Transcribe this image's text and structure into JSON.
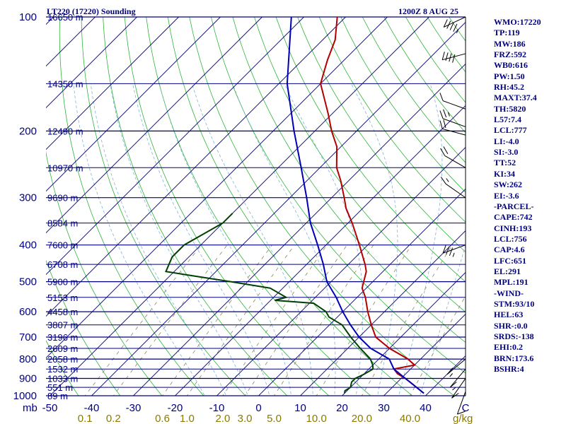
{
  "header": {
    "title": "LT220 (17220) Sounding",
    "valid": "1200Z  8 AUG 25"
  },
  "indices": [
    "WMO:17220",
    "TP:119",
    "MW:186",
    "FRZ:592",
    "WB0:616",
    "PW:1.50",
    "RH:45.2",
    "MAXT:37.4",
    "TH:5820",
    "L57:7.4",
    "LCL:777",
    "LI:-4.0",
    "SI:-3.0",
    "TT:52",
    "KI:34",
    "SW:262",
    "EI:-3.6",
    "-PARCEL-",
    "CAPE:742",
    "CINH:193",
    "LCL:756",
    "CAP:4.6",
    "LFC:651",
    "EL:291",
    "MPL:191",
    "-WIND-",
    "STM:93/10",
    "HEL:63",
    "SHR-:0.0",
    "SRDS:-138",
    "EHI:0.2",
    "BRN:173.6",
    "BSHR:4"
  ],
  "colors": {
    "isobar": "#00007f",
    "isotherm": "#00007f",
    "dry_adiabat": "#2fb43a",
    "moist_adiabat": "#7fb4d8",
    "mixing_ratio": "#8a8a5a",
    "temperature": "#b40000",
    "dewpoint": "#004000",
    "parcel": "#0000b4",
    "axis_text": "#00007f",
    "mixing_text": "#8a7a00"
  },
  "chart_data": {
    "type": "skew-t log-p sounding",
    "pressure_ticks": [
      "100",
      "200",
      "300",
      "400",
      "500",
      "600",
      "700",
      "800",
      "900",
      "1000"
    ],
    "pressure_tick_values": [
      100,
      200,
      300,
      400,
      500,
      600,
      700,
      800,
      900,
      1000
    ],
    "pressure_unit": "mb",
    "temperature_ticks": [
      "-50",
      "-40",
      "-30",
      "-20",
      "-10",
      "0",
      "10",
      "20",
      "30",
      "40"
    ],
    "temperature_tick_values": [
      -50,
      -40,
      -30,
      -20,
      -10,
      0,
      10,
      20,
      30,
      40
    ],
    "temperature_unit": "C",
    "mixing_ratio_ticks": [
      "0.1",
      "0.2",
      "0.6",
      "1.0",
      "2.0",
      "3.0",
      "5.0",
      "10.0",
      "20.0",
      "40.0"
    ],
    "mixing_ratio_values": [
      0.1,
      0.2,
      0.6,
      1.0,
      2.0,
      3.0,
      5.0,
      10.0,
      20.0,
      40.0
    ],
    "mixing_ratio_unit": "g/kg",
    "height_labels": [
      {
        "p": 100,
        "label": "16650 m"
      },
      {
        "p": 150,
        "label": "14350 m"
      },
      {
        "p": 200,
        "label": "12490 m"
      },
      {
        "p": 250,
        "label": "10970 m"
      },
      {
        "p": 300,
        "label": "9690 m"
      },
      {
        "p": 350,
        "label": "8584 m"
      },
      {
        "p": 400,
        "label": "7600 m"
      },
      {
        "p": 450,
        "label": "6708 m"
      },
      {
        "p": 500,
        "label": "5900 m"
      },
      {
        "p": 550,
        "label": "5153 m"
      },
      {
        "p": 600,
        "label": "4458 m"
      },
      {
        "p": 650,
        "label": "3807 m"
      },
      {
        "p": 700,
        "label": "3196 m"
      },
      {
        "p": 750,
        "label": "2609 m"
      },
      {
        "p": 800,
        "label": "2058 m"
      },
      {
        "p": 850,
        "label": "1532 m"
      },
      {
        "p": 900,
        "label": "1033 m"
      },
      {
        "p": 950,
        "label": "551 m"
      },
      {
        "p": 1000,
        "label": "89 m"
      }
    ],
    "series": [
      {
        "name": "temperature",
        "points": [
          [
            985,
            39.0
          ],
          [
            920,
            33.0
          ],
          [
            900,
            31.0
          ],
          [
            875,
            28.0
          ],
          [
            850,
            26.0
          ],
          [
            830,
            30.0
          ],
          [
            800,
            27.0
          ],
          [
            750,
            20.0
          ],
          [
            700,
            14.0
          ],
          [
            650,
            10.0
          ],
          [
            600,
            6.0
          ],
          [
            550,
            2.0
          ],
          [
            520,
            -1.0
          ],
          [
            470,
            -4.0
          ],
          [
            450,
            -6.0
          ],
          [
            400,
            -12.0
          ],
          [
            350,
            -19.0
          ],
          [
            320,
            -24.0
          ],
          [
            300,
            -27.0
          ],
          [
            270,
            -32.0
          ],
          [
            250,
            -36.0
          ],
          [
            220,
            -41.0
          ],
          [
            200,
            -46.0
          ],
          [
            180,
            -51.0
          ],
          [
            150,
            -60.0
          ],
          [
            130,
            -64.0
          ],
          [
            115,
            -67.0
          ],
          [
            100,
            -72.0
          ]
        ]
      },
      {
        "name": "dewpoint",
        "points": [
          [
            985,
            20.0
          ],
          [
            970,
            19.5
          ],
          [
            950,
            20.0
          ],
          [
            920,
            19.0
          ],
          [
            900,
            19.0
          ],
          [
            880,
            20.0
          ],
          [
            850,
            21.0
          ],
          [
            830,
            20.0
          ],
          [
            800,
            18.0
          ],
          [
            750,
            13.0
          ],
          [
            700,
            8.0
          ],
          [
            650,
            3.0
          ],
          [
            620,
            -2.0
          ],
          [
            600,
            -4.0
          ],
          [
            570,
            -9.0
          ],
          [
            560,
            -19.0
          ],
          [
            550,
            -17.0
          ],
          [
            520,
            -23.0
          ],
          [
            500,
            -34.0
          ],
          [
            480,
            -46.0
          ],
          [
            470,
            -52.0
          ],
          [
            430,
            -54.0
          ],
          [
            400,
            -54.0
          ],
          [
            350,
            -50.0
          ],
          [
            330,
            -50.0
          ]
        ]
      },
      {
        "name": "parcel",
        "points": [
          [
            985,
            39.0
          ],
          [
            900,
            31.0
          ],
          [
            850,
            26.0
          ],
          [
            800,
            22.5
          ],
          [
            750,
            15.5
          ],
          [
            700,
            10.0
          ],
          [
            650,
            5.0
          ],
          [
            600,
            0.0
          ],
          [
            550,
            -5.0
          ],
          [
            500,
            -11.0
          ],
          [
            450,
            -16.0
          ],
          [
            400,
            -22.0
          ],
          [
            350,
            -29.0
          ],
          [
            300,
            -36.0
          ],
          [
            250,
            -44.5
          ],
          [
            200,
            -55.0
          ],
          [
            150,
            -68.0
          ],
          [
            100,
            -83.0
          ]
        ]
      }
    ],
    "wind_barbs": [
      {
        "p": 100,
        "dir": 245,
        "speed": 45
      },
      {
        "p": 125,
        "dir": 255,
        "speed": 40
      },
      {
        "p": 175,
        "dir": 290,
        "speed": 10
      },
      {
        "p": 195,
        "dir": 290,
        "speed": 25
      },
      {
        "p": 205,
        "dir": 285,
        "speed": 20
      },
      {
        "p": 250,
        "dir": 300,
        "speed": 20
      },
      {
        "p": 300,
        "dir": 305,
        "speed": 15
      },
      {
        "p": 400,
        "dir": 250,
        "speed": 35
      },
      {
        "p": 800,
        "dir": 230,
        "speed": 15
      },
      {
        "p": 850,
        "dir": 220,
        "speed": 15
      },
      {
        "p": 900,
        "dir": 215,
        "speed": 10
      },
      {
        "p": 975,
        "dir": 200,
        "speed": 10
      }
    ]
  }
}
